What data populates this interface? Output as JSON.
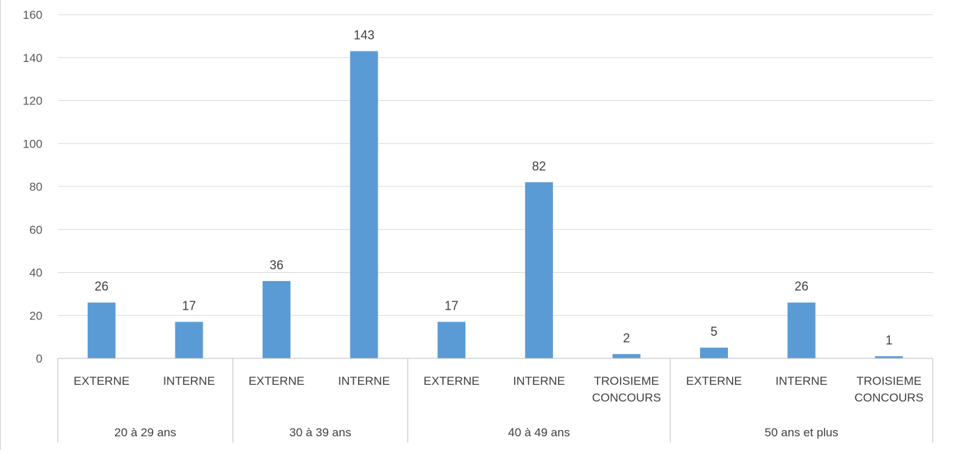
{
  "chart_data": {
    "type": "bar",
    "title": "",
    "xlabel": "",
    "ylabel": "",
    "ylim": [
      0,
      160
    ],
    "yticks": [
      0,
      20,
      40,
      60,
      80,
      100,
      120,
      140,
      160
    ],
    "grid": true,
    "bar_color": "#5b9bd5",
    "data_labels": true,
    "groups": [
      {
        "label": "20 à 29 ans",
        "items": [
          {
            "category": "EXTERNE",
            "value": 26
          },
          {
            "category": "INTERNE",
            "value": 17
          }
        ]
      },
      {
        "label": "30 à 39 ans",
        "items": [
          {
            "category": "EXTERNE",
            "value": 36
          },
          {
            "category": "INTERNE",
            "value": 143
          }
        ]
      },
      {
        "label": "40 à 49 ans",
        "items": [
          {
            "category": "EXTERNE",
            "value": 17
          },
          {
            "category": "INTERNE",
            "value": 82
          },
          {
            "category": "TROISIEME CONCOURS",
            "value": 2
          }
        ]
      },
      {
        "label": "50 ans et plus",
        "items": [
          {
            "category": "EXTERNE",
            "value": 5
          },
          {
            "category": "INTERNE",
            "value": 26
          },
          {
            "category": "TROISIEME CONCOURS",
            "value": 1
          }
        ]
      }
    ]
  }
}
